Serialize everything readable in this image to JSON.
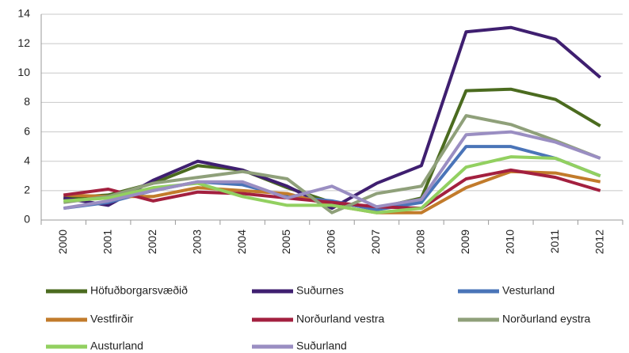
{
  "chart_data": {
    "type": "line",
    "categories": [
      "2000",
      "2001",
      "2002",
      "2003",
      "2004",
      "2005",
      "2006",
      "2007",
      "2008",
      "2009",
      "2010",
      "2011",
      "2012"
    ],
    "series": [
      {
        "name": "Höfuðborgarsvæðið",
        "color": "#4b6b1f",
        "values": [
          1.5,
          1.7,
          2.5,
          3.7,
          3.4,
          2.2,
          1.2,
          0.8,
          1.5,
          8.8,
          8.9,
          8.2,
          6.4
        ]
      },
      {
        "name": "Suðurnes",
        "color": "#3f1f70",
        "values": [
          1.5,
          1.0,
          2.7,
          4.0,
          3.4,
          2.3,
          0.8,
          2.5,
          3.7,
          12.8,
          13.1,
          12.3,
          9.7
        ]
      },
      {
        "name": "Vesturland",
        "color": "#4a74b8",
        "values": [
          0.8,
          1.2,
          2.0,
          2.6,
          2.4,
          1.6,
          1.3,
          0.7,
          1.2,
          5.0,
          5.0,
          4.2,
          3.0
        ]
      },
      {
        "name": "Vestfirðir",
        "color": "#c27b2b",
        "values": [
          1.7,
          1.6,
          1.6,
          2.2,
          2.0,
          1.8,
          1.0,
          0.5,
          0.5,
          2.2,
          3.3,
          3.2,
          2.6
        ]
      },
      {
        "name": "Norðurland vestra",
        "color": "#a3203f",
        "values": [
          1.7,
          2.1,
          1.3,
          1.9,
          1.8,
          1.5,
          1.2,
          0.9,
          0.8,
          2.8,
          3.4,
          2.9,
          2.0
        ]
      },
      {
        "name": "Norðurland eystra",
        "color": "#8fa07a",
        "values": [
          1.2,
          1.6,
          2.5,
          2.9,
          3.3,
          2.8,
          0.5,
          1.8,
          2.3,
          7.1,
          6.5,
          5.4,
          4.2
        ]
      },
      {
        "name": "Austurland",
        "color": "#92d060",
        "values": [
          1.3,
          1.5,
          2.2,
          2.5,
          1.6,
          1.0,
          1.0,
          0.5,
          0.8,
          3.6,
          4.3,
          4.2,
          3.0
        ]
      },
      {
        "name": "Suðurland",
        "color": "#9a8ec2",
        "values": [
          0.8,
          1.3,
          2.0,
          2.6,
          2.6,
          1.5,
          2.3,
          0.9,
          1.4,
          5.8,
          6.0,
          5.3,
          4.2
        ]
      }
    ],
    "ylim": [
      0,
      14
    ],
    "yticks": [
      0,
      2,
      4,
      6,
      8,
      10,
      12,
      14
    ],
    "grid": true
  }
}
